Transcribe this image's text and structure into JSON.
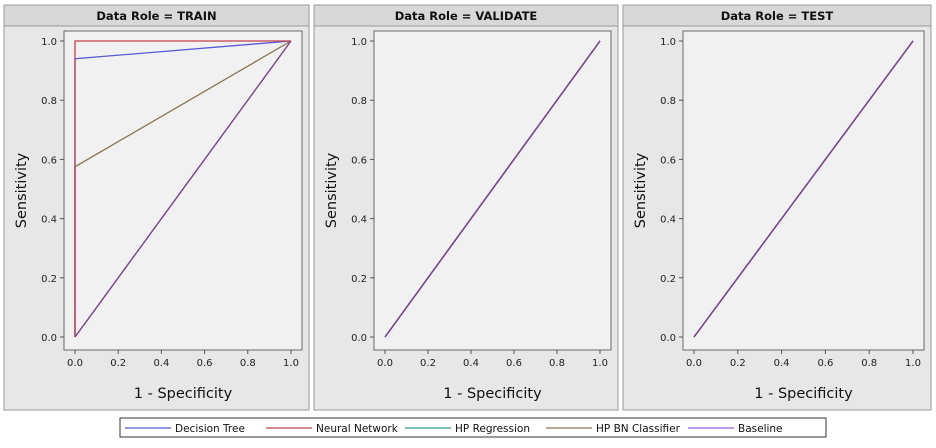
{
  "legend": [
    {
      "name": "Decision Tree",
      "color": "#5a5ad8"
    },
    {
      "name": "Neural Network",
      "color": "#c0404a"
    },
    {
      "name": "HP Regression",
      "color": "#2e9a8c"
    },
    {
      "name": "HP BN Classifier",
      "color": "#8a7450"
    },
    {
      "name": "Baseline",
      "color": "#9a5ae0"
    }
  ],
  "chart_data": [
    {
      "type": "line",
      "title": "Data Role = TRAIN",
      "xlabel": "1 - Specificity",
      "ylabel": "Sensitivity",
      "xlim": [
        0,
        1
      ],
      "ylim": [
        0,
        1
      ],
      "xticks": [
        "0.0",
        "0.2",
        "0.4",
        "0.6",
        "0.8",
        "1.0"
      ],
      "yticks": [
        "0.0",
        "0.2",
        "0.4",
        "0.6",
        "0.8",
        "1.0"
      ],
      "series": [
        {
          "name": "Baseline",
          "color": "#7a4a8c",
          "x": [
            0,
            1
          ],
          "y": [
            0,
            1
          ]
        },
        {
          "name": "HP Regression",
          "color": "#7a4a8c",
          "x": [
            0,
            1
          ],
          "y": [
            0,
            1
          ]
        },
        {
          "name": "HP BN Classifier",
          "color": "#8a7450",
          "x": [
            0,
            0,
            1
          ],
          "y": [
            0,
            0.575,
            1
          ]
        },
        {
          "name": "Decision Tree",
          "color": "#5a5ad8",
          "x": [
            0,
            0,
            1
          ],
          "y": [
            0,
            0.94,
            1
          ]
        },
        {
          "name": "Neural Network",
          "color": "#c0404a",
          "x": [
            0,
            0,
            1
          ],
          "y": [
            0,
            1,
            1
          ]
        }
      ]
    },
    {
      "type": "line",
      "title": "Data Role = VALIDATE",
      "xlabel": "1 - Specificity",
      "ylabel": "Sensitivity",
      "xlim": [
        0,
        1
      ],
      "ylim": [
        0,
        1
      ],
      "xticks": [
        "0.0",
        "0.2",
        "0.4",
        "0.6",
        "0.8",
        "1.0"
      ],
      "yticks": [
        "0.0",
        "0.2",
        "0.4",
        "0.6",
        "0.8",
        "1.0"
      ],
      "series": [
        {
          "name": "Baseline",
          "color": "#7a4a8c",
          "x": [
            0,
            1
          ],
          "y": [
            0,
            1
          ]
        },
        {
          "name": "HP Regression",
          "color": "#7a4a8c",
          "x": [
            0,
            1
          ],
          "y": [
            0,
            1
          ]
        },
        {
          "name": "HP BN Classifier",
          "color": "#7a4a8c",
          "x": [
            0,
            1
          ],
          "y": [
            0,
            1
          ]
        },
        {
          "name": "Decision Tree",
          "color": "#7a4a8c",
          "x": [
            0,
            1
          ],
          "y": [
            0,
            1
          ]
        },
        {
          "name": "Neural Network",
          "color": "#7a4a8c",
          "x": [
            0,
            1
          ],
          "y": [
            0,
            1
          ]
        }
      ]
    },
    {
      "type": "line",
      "title": "Data Role = TEST",
      "xlabel": "1 - Specificity",
      "ylabel": "Sensitivity",
      "xlim": [
        0,
        1
      ],
      "ylim": [
        0,
        1
      ],
      "xticks": [
        "0.0",
        "0.2",
        "0.4",
        "0.6",
        "0.8",
        "1.0"
      ],
      "yticks": [
        "0.0",
        "0.2",
        "0.4",
        "0.6",
        "0.8",
        "1.0"
      ],
      "series": [
        {
          "name": "Baseline",
          "color": "#7a4a8c",
          "x": [
            0,
            1
          ],
          "y": [
            0,
            1
          ]
        },
        {
          "name": "HP Regression",
          "color": "#7a4a8c",
          "x": [
            0,
            1
          ],
          "y": [
            0,
            1
          ]
        },
        {
          "name": "HP BN Classifier",
          "color": "#7a4a8c",
          "x": [
            0,
            1
          ],
          "y": [
            0,
            1
          ]
        },
        {
          "name": "Decision Tree",
          "color": "#7a4a8c",
          "x": [
            0,
            1
          ],
          "y": [
            0,
            1
          ]
        },
        {
          "name": "Neural Network",
          "color": "#7a4a8c",
          "x": [
            0,
            1
          ],
          "y": [
            0,
            1
          ]
        }
      ]
    }
  ]
}
